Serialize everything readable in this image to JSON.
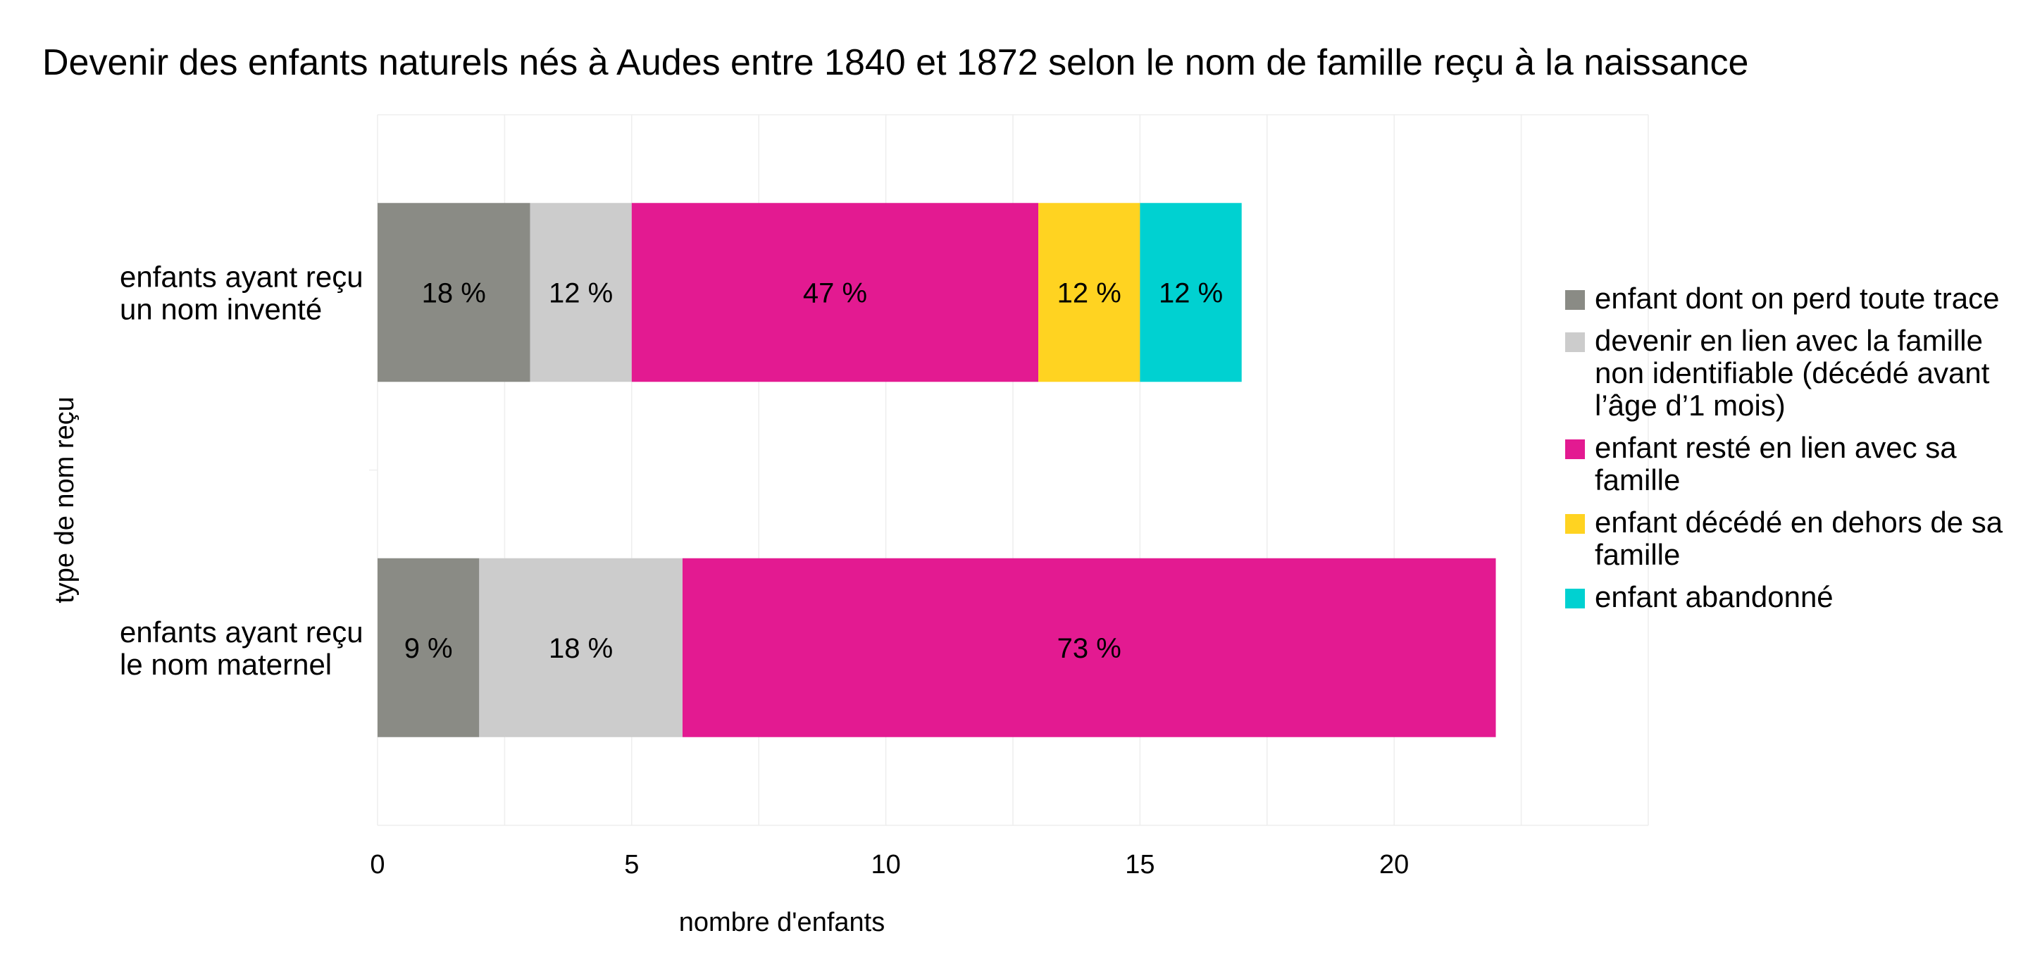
{
  "chart_data": {
    "type": "bar",
    "orientation": "horizontal",
    "stacked": true,
    "title": "Devenir des enfants naturels nés à Audes entre 1840 et 1872 selon le nom de famille reçu à la naissance",
    "xlabel": "nombre d'enfants",
    "ylabel": "type de nom reçu",
    "xlim": [
      0,
      25
    ],
    "xticks": [
      0,
      5,
      10,
      15,
      20
    ],
    "grid": true,
    "legend_position": "right",
    "categories": [
      [
        "enfants ayant reçu",
        "un nom inventé"
      ],
      [
        "enfants ayant reçu",
        "le nom maternel"
      ]
    ],
    "series": [
      {
        "name": [
          "enfant dont on perd toute trace"
        ],
        "color": "#8a8b85",
        "values": [
          3,
          2
        ],
        "labels": [
          "18 %",
          "9 %"
        ]
      },
      {
        "name": [
          "devenir en lien avec la famille",
          "non identifiable (décédé avant",
          "l’âge d’1 mois)"
        ],
        "color": "#cccccc",
        "values": [
          2,
          4
        ],
        "labels": [
          "12 %",
          "18 %"
        ]
      },
      {
        "name": [
          "enfant resté en lien avec sa",
          "famille"
        ],
        "color": "#e31a91",
        "values": [
          8,
          16
        ],
        "labels": [
          "47 %",
          "73 %"
        ]
      },
      {
        "name": [
          "enfant décédé en dehors de sa",
          "famille"
        ],
        "color": "#ffd321",
        "values": [
          2,
          0
        ],
        "labels": [
          "12 %",
          ""
        ]
      },
      {
        "name": [
          "enfant abandonné"
        ],
        "color": "#00d1d1",
        "values": [
          2,
          0
        ],
        "labels": [
          "12 %",
          ""
        ]
      }
    ]
  }
}
